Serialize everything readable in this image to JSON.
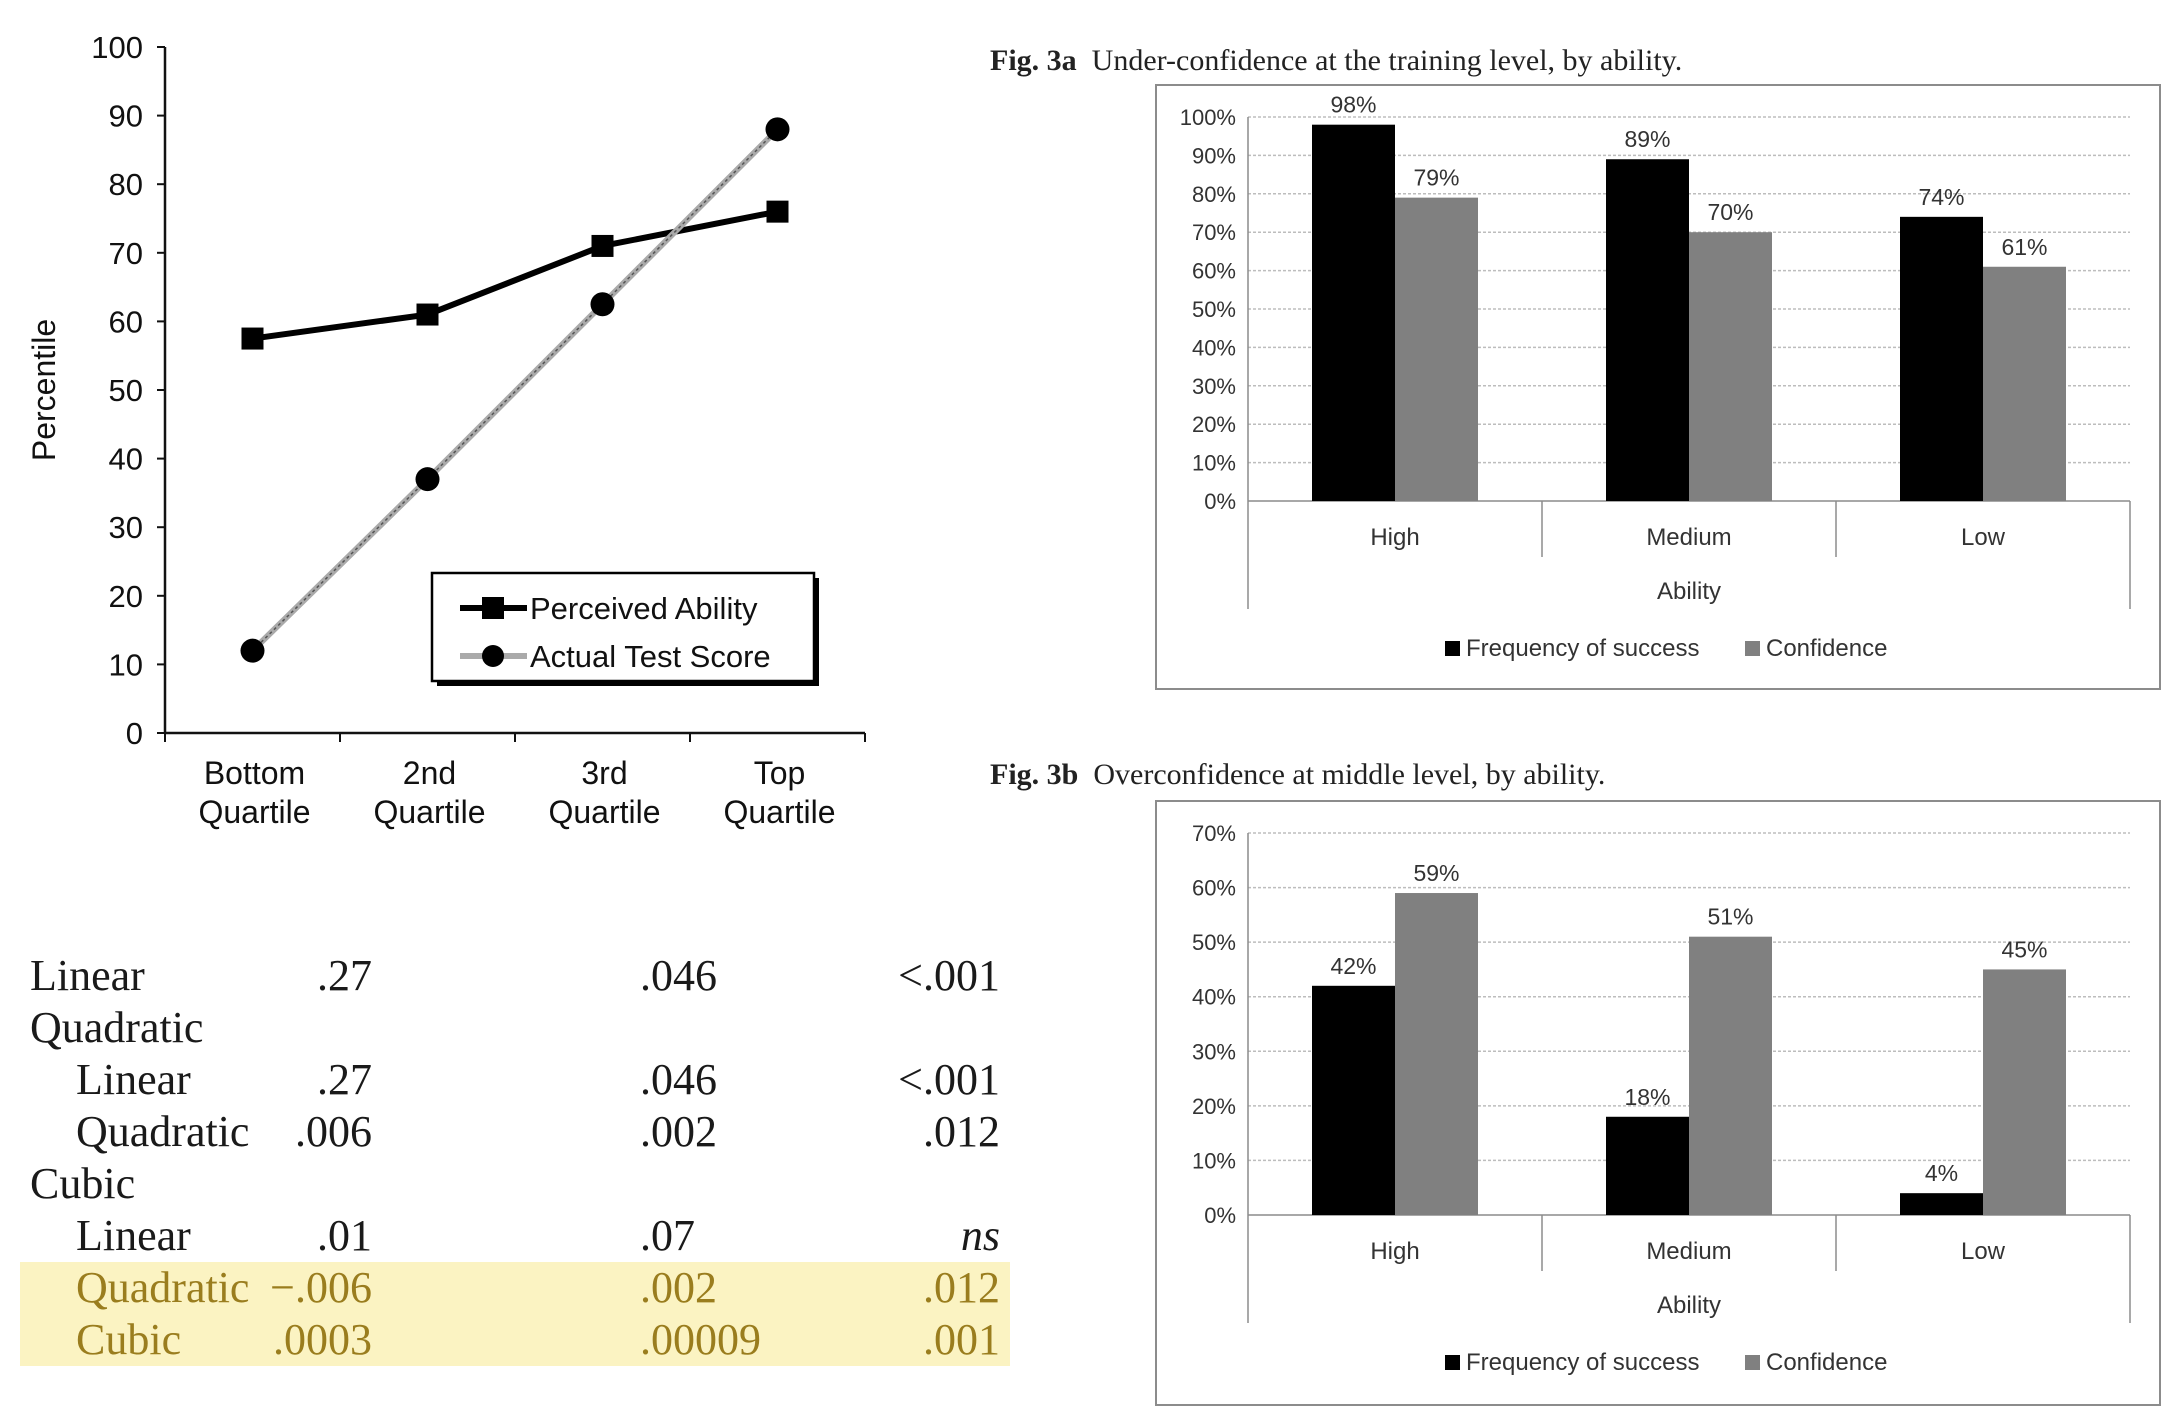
{
  "chart_data": [
    {
      "type": "line",
      "ylabel": "Percentile",
      "ylim": [
        0,
        100
      ],
      "yticks": [
        "0",
        "10",
        "20",
        "30",
        "40",
        "50",
        "60",
        "70",
        "80",
        "90",
        "100"
      ],
      "categories": [
        [
          "Bottom",
          "Quartile"
        ],
        [
          "2nd",
          "Quartile"
        ],
        [
          "3rd",
          "Quartile"
        ],
        [
          "Top",
          "Quartile"
        ]
      ],
      "series": [
        {
          "name": "Perceived Ability",
          "values": [
            57.5,
            61,
            71,
            76
          ],
          "color": "#000000",
          "marker": "square"
        },
        {
          "name": "Actual Test Score",
          "values": [
            12,
            37,
            62.5,
            88
          ],
          "color": "#aaaaaa",
          "marker": "circle"
        }
      ],
      "grid": false,
      "legend": "bottom-right"
    },
    {
      "type": "bar",
      "fig_label": "Fig. 3a",
      "title": "Under-confidence at the training level, by ability.",
      "categories": [
        "High",
        "Medium",
        "Low"
      ],
      "xlabel": "Ability",
      "ylim": [
        0,
        100
      ],
      "yticks": [
        "0%",
        "10%",
        "20%",
        "30%",
        "40%",
        "50%",
        "60%",
        "70%",
        "80%",
        "90%",
        "100%"
      ],
      "series": [
        {
          "name": "Frequency of success",
          "values": [
            98,
            89,
            74
          ],
          "labels": [
            "98%",
            "89%",
            "74%"
          ],
          "color": "#000000"
        },
        {
          "name": "Confidence",
          "values": [
            79,
            70,
            61
          ],
          "labels": [
            "79%",
            "70%",
            "61%"
          ],
          "color": "#808080"
        }
      ],
      "grid": true,
      "legend": "bottom"
    },
    {
      "type": "bar",
      "fig_label": "Fig. 3b",
      "title": "Overconfidence at middle level, by ability.",
      "categories": [
        "High",
        "Medium",
        "Low"
      ],
      "xlabel": "Ability",
      "ylim": [
        0,
        70
      ],
      "yticks": [
        "0%",
        "10%",
        "20%",
        "30%",
        "40%",
        "50%",
        "60%",
        "70%"
      ],
      "series": [
        {
          "name": "Frequency of success",
          "values": [
            42,
            18,
            4
          ],
          "labels": [
            "42%",
            "18%",
            "4%"
          ],
          "color": "#000000"
        },
        {
          "name": "Confidence",
          "values": [
            59,
            51,
            45
          ],
          "labels": [
            "59%",
            "51%",
            "45%"
          ],
          "color": "#808080"
        }
      ],
      "grid": true,
      "legend": "bottom"
    },
    {
      "type": "table",
      "rows": [
        {
          "label": "Linear",
          "indent": false,
          "cells": [
            ".27",
            ".046",
            "<.001"
          ],
          "highlight": false
        },
        {
          "label": "Quadratic",
          "indent": false,
          "cells": [
            "",
            "",
            ""
          ],
          "highlight": false
        },
        {
          "label": "Linear",
          "indent": true,
          "cells": [
            ".27",
            ".046",
            "<.001"
          ],
          "highlight": false
        },
        {
          "label": "Quadratic",
          "indent": true,
          "cells": [
            ".006",
            ".002",
            ".012"
          ],
          "highlight": false
        },
        {
          "label": "Cubic",
          "indent": false,
          "cells": [
            "",
            "",
            ""
          ],
          "highlight": false
        },
        {
          "label": "Linear",
          "indent": true,
          "cells": [
            ".01",
            ".07",
            "ns"
          ],
          "highlight": false
        },
        {
          "label": "Quadratic",
          "indent": true,
          "cells": [
            "−.006",
            ".002",
            ".012"
          ],
          "highlight": true
        },
        {
          "label": "Cubic",
          "indent": true,
          "cells": [
            ".0003",
            ".00009",
            ".001"
          ],
          "highlight": true
        }
      ]
    }
  ],
  "colors": {
    "highlight_bg": "#fbf3c2",
    "highlight_text": "#9a7d1e"
  }
}
